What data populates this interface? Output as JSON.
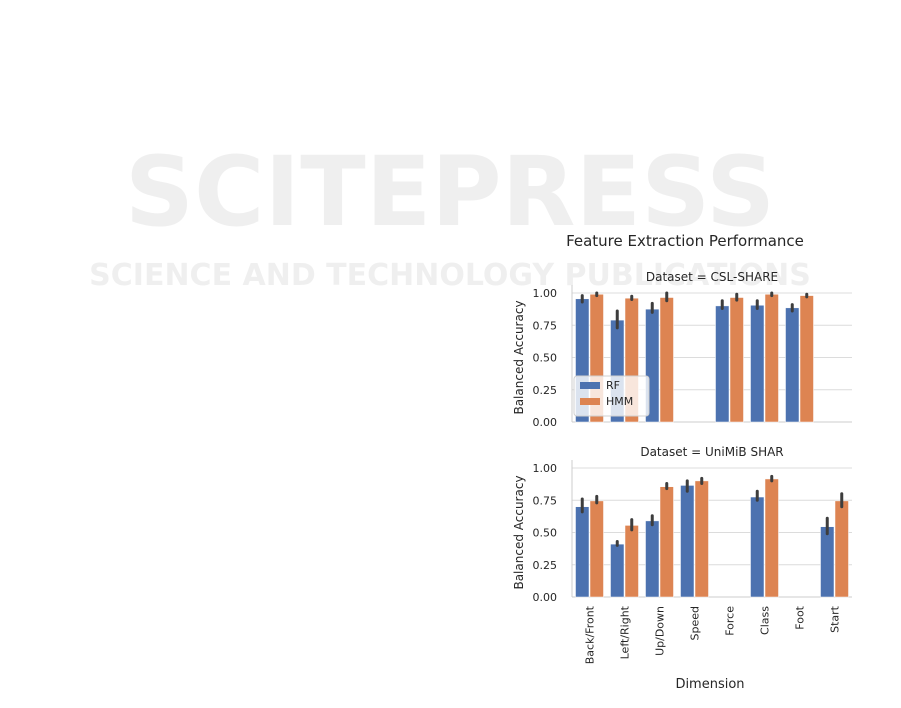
{
  "watermark": {
    "main": "SCITEPRESS",
    "sub": "SCIENCE AND TECHNOLOGY PUBLICATIONS"
  },
  "chart_data": [
    {
      "type": "bar",
      "suptitle": "Feature Extraction Performance",
      "title": "Dataset = CSL-SHARE",
      "xlabel": "",
      "ylabel": "Balanced Accuracy",
      "ylim": [
        0,
        1.0
      ],
      "yticks": [
        "0.00",
        "0.25",
        "0.50",
        "0.75",
        "1.00"
      ],
      "grid": true,
      "legend": {
        "placement": "lower-left",
        "entries": [
          "RF",
          "HMM"
        ]
      },
      "categories": [
        "Back/Front",
        "Left/Right",
        "Up/Down",
        "Speed",
        "Force",
        "Class",
        "Foot",
        "Start"
      ],
      "series": [
        {
          "name": "RF",
          "color": "#4c72b0",
          "values": [
            0.955,
            0.79,
            0.875,
            null,
            0.9,
            0.905,
            0.885,
            null
          ],
          "ci": [
            [
              0.93,
              0.98
            ],
            [
              0.73,
              0.86
            ],
            [
              0.85,
              0.92
            ],
            null,
            [
              0.88,
              0.94
            ],
            [
              0.88,
              0.94
            ],
            [
              0.86,
              0.91
            ],
            null
          ]
        },
        {
          "name": "HMM",
          "color": "#dd8452",
          "values": [
            0.99,
            0.96,
            0.965,
            null,
            0.965,
            0.99,
            0.98,
            null
          ],
          "ci": [
            [
              0.98,
              1.0
            ],
            [
              0.95,
              0.975
            ],
            [
              0.94,
              1.0
            ],
            null,
            [
              0.945,
              0.99
            ],
            [
              0.98,
              1.0
            ],
            [
              0.97,
              0.99
            ],
            null
          ]
        }
      ]
    },
    {
      "type": "bar",
      "title": "Dataset = UniMiB SHAR",
      "xlabel": "Dimension",
      "ylabel": "Balanced Accuracy",
      "ylim": [
        0,
        1.0
      ],
      "yticks": [
        "0.00",
        "0.25",
        "0.50",
        "0.75",
        "1.00"
      ],
      "grid": true,
      "categories": [
        "Back/Front",
        "Left/Right",
        "Up/Down",
        "Speed",
        "Force",
        "Class",
        "Foot",
        "Start"
      ],
      "series": [
        {
          "name": "RF",
          "color": "#4c72b0",
          "values": [
            0.7,
            0.41,
            0.59,
            0.865,
            null,
            0.775,
            null,
            0.545
          ],
          "ci": [
            [
              0.66,
              0.76
            ],
            [
              0.4,
              0.43
            ],
            [
              0.56,
              0.63
            ],
            [
              0.82,
              0.9
            ],
            null,
            [
              0.75,
              0.82
            ],
            null,
            [
              0.49,
              0.61
            ]
          ]
        },
        {
          "name": "HMM",
          "color": "#dd8452",
          "values": [
            0.745,
            0.555,
            0.855,
            0.9,
            null,
            0.915,
            null,
            0.745
          ],
          "ci": [
            [
              0.73,
              0.78
            ],
            [
              0.52,
              0.6
            ],
            [
              0.84,
              0.88
            ],
            [
              0.88,
              0.92
            ],
            null,
            [
              0.9,
              0.935
            ],
            null,
            [
              0.7,
              0.8
            ]
          ]
        }
      ]
    }
  ]
}
